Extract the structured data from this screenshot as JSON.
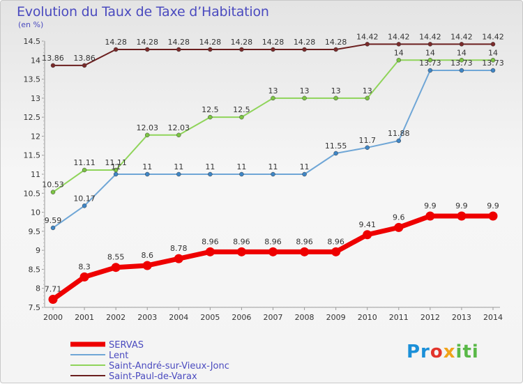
{
  "chart_data": {
    "type": "line",
    "title": "Evolution du Taux de Taxe d’Habitation",
    "ylabel": "(en %)",
    "xlabel": "",
    "x": [
      2000,
      2001,
      2002,
      2003,
      2004,
      2005,
      2006,
      2007,
      2008,
      2009,
      2010,
      2011,
      2012,
      2013,
      2014
    ],
    "ylim": [
      7.5,
      14.5
    ],
    "yticks": [
      7.5,
      8,
      8.5,
      9,
      9.5,
      10,
      10.5,
      11,
      11.5,
      12,
      12.5,
      13,
      13.5,
      14,
      14.5
    ],
    "ytick_labels": [
      "7.5",
      "8",
      "8.5",
      "9",
      "9.5",
      "10",
      "10.5",
      "11",
      "11.5",
      "12",
      "12.5",
      "13",
      "13.5",
      "14",
      "14.5"
    ],
    "grid": false,
    "legend_position": "bottom-left",
    "series": [
      {
        "name": "Saint-Paul-de-Varax",
        "color": "#6b1f1f",
        "width": 2,
        "marker_color": "#7a2a2a",
        "values": [
          13.86,
          13.86,
          14.28,
          14.28,
          14.28,
          14.28,
          14.28,
          14.28,
          14.28,
          14.28,
          14.42,
          14.42,
          14.42,
          14.42,
          14.42
        ],
        "labels": [
          "13.86",
          "13.86",
          "14.28",
          "14.28",
          "14.28",
          "14.28",
          "14.28",
          "14.28",
          "14.28",
          "14.28",
          "14.42",
          "14.42",
          "14.42",
          "14.42",
          "14.42"
        ]
      },
      {
        "name": "Saint-André-sur-Vieux-Jonc",
        "color": "#8fd45a",
        "width": 2,
        "marker_color": "#7cc444",
        "values": [
          10.53,
          11.11,
          11.11,
          12.03,
          12.03,
          12.5,
          12.5,
          13,
          13,
          13,
          13,
          14,
          14,
          14,
          14
        ],
        "labels": [
          "10.53",
          "11.11",
          "11.11",
          "12.03",
          "12.03",
          "12.5",
          "12.5",
          "13",
          "13",
          "13",
          "13",
          "14",
          "14",
          "14",
          "14"
        ]
      },
      {
        "name": "Lent",
        "color": "#6fa6d6",
        "width": 2,
        "marker_color": "#3f86c6",
        "values": [
          9.59,
          10.17,
          11,
          11,
          11,
          11,
          11,
          11,
          11,
          11.55,
          11.7,
          11.88,
          13.73,
          13.73,
          13.73
        ],
        "labels": [
          "9.59",
          "10.17",
          "11",
          "11",
          "11",
          "11",
          "11",
          "11",
          "11",
          "11.55",
          "11.7",
          "11.88",
          "13.73",
          "13.73",
          "13.73"
        ]
      },
      {
        "name": "SERVAS",
        "color": "#ee0000",
        "width": 7,
        "marker_color": "#ee0000",
        "values": [
          7.71,
          8.3,
          8.55,
          8.6,
          8.78,
          8.96,
          8.96,
          8.96,
          8.96,
          8.96,
          9.41,
          9.6,
          9.9,
          9.9,
          9.9
        ],
        "labels": [
          "7.71",
          "8.3",
          "8.55",
          "8.6",
          "8.78",
          "8.96",
          "8.96",
          "8.96",
          "8.96",
          "8.96",
          "9.41",
          "9.6",
          "9.9",
          "9.9",
          "9.9"
        ]
      }
    ],
    "legend": [
      "SERVAS",
      "Lent",
      "Saint-André-sur-Vieux-Jonc",
      "Saint-Paul-de-Varax"
    ]
  },
  "logo": {
    "p1": "Pr",
    "p2": "o",
    "p3": "x",
    "p4": "iti"
  }
}
